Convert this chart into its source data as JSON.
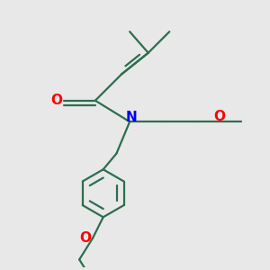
{
  "bg_color": "#e8e8e8",
  "bond_color": "#2d6e4e",
  "O_color": "#ff0000",
  "N_color": "#0000ff",
  "line_width": 1.6,
  "font_size": 10,
  "figsize": [
    3.0,
    3.0
  ],
  "dpi": 100,
  "xlim": [
    0,
    10
  ],
  "ylim": [
    0,
    10
  ]
}
